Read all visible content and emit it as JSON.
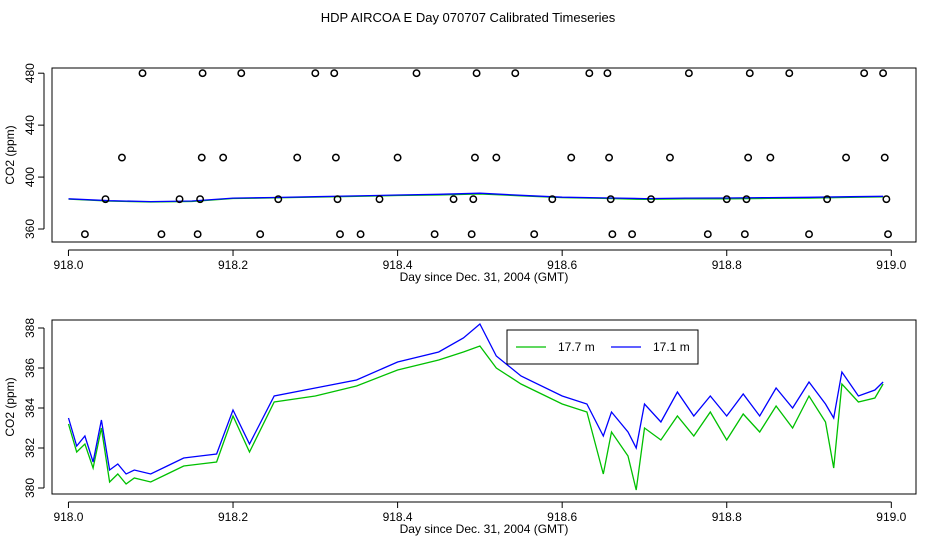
{
  "title": "HDP AIRCOA E  Day 070707  Calibrated Timeseries",
  "colors": {
    "green": "#00c000",
    "blue": "#0000ff",
    "axis": "#000000",
    "marker": "#000000"
  },
  "chart_data": [
    {
      "type": "scatter+line",
      "xlabel": "Day since Dec. 31, 2004 (GMT)",
      "ylabel": "CO2 (ppm)",
      "xlim": [
        917.98,
        919.03
      ],
      "ylim": [
        350,
        484
      ],
      "xticks": [
        918.0,
        918.2,
        918.4,
        918.6,
        918.8,
        919.0
      ],
      "xtick_labels": [
        "918.0",
        "918.2",
        "918.4",
        "918.6",
        "918.8",
        "919.0"
      ],
      "yticks": [
        360,
        400,
        440,
        480
      ],
      "ytick_labels": [
        "360",
        "400",
        "440",
        "480"
      ],
      "points": [
        [
          918.02,
          356
        ],
        [
          918.045,
          383
        ],
        [
          918.065,
          415
        ],
        [
          918.09,
          480
        ],
        [
          918.113,
          356
        ],
        [
          918.135,
          383
        ],
        [
          918.157,
          356
        ],
        [
          918.16,
          383
        ],
        [
          918.162,
          415
        ],
        [
          918.163,
          480
        ],
        [
          918.188,
          415
        ],
        [
          918.21,
          480
        ],
        [
          918.233,
          356
        ],
        [
          918.255,
          383
        ],
        [
          918.278,
          415
        ],
        [
          918.3,
          480
        ],
        [
          918.323,
          480
        ],
        [
          918.325,
          415
        ],
        [
          918.327,
          383
        ],
        [
          918.33,
          356
        ],
        [
          918.355,
          356
        ],
        [
          918.378,
          383
        ],
        [
          918.4,
          415
        ],
        [
          918.423,
          480
        ],
        [
          918.445,
          356
        ],
        [
          918.468,
          383
        ],
        [
          918.49,
          356
        ],
        [
          918.492,
          383
        ],
        [
          918.494,
          415
        ],
        [
          918.496,
          480
        ],
        [
          918.52,
          415
        ],
        [
          918.543,
          480
        ],
        [
          918.566,
          356
        ],
        [
          918.588,
          383
        ],
        [
          918.611,
          415
        ],
        [
          918.633,
          480
        ],
        [
          918.655,
          480
        ],
        [
          918.657,
          415
        ],
        [
          918.659,
          383
        ],
        [
          918.661,
          356
        ],
        [
          918.685,
          356
        ],
        [
          918.708,
          383
        ],
        [
          918.731,
          415
        ],
        [
          918.754,
          480
        ],
        [
          918.777,
          356
        ],
        [
          918.8,
          383
        ],
        [
          918.822,
          356
        ],
        [
          918.824,
          383
        ],
        [
          918.826,
          415
        ],
        [
          918.828,
          480
        ],
        [
          918.853,
          415
        ],
        [
          918.876,
          480
        ],
        [
          918.9,
          356
        ],
        [
          918.922,
          383
        ],
        [
          918.945,
          415
        ],
        [
          918.967,
          480
        ],
        [
          918.99,
          480
        ],
        [
          918.992,
          415
        ],
        [
          918.994,
          383
        ],
        [
          918.996,
          356
        ]
      ],
      "series": [
        {
          "color": "#00c000",
          "x": [
            918.0,
            918.05,
            918.1,
            918.15,
            918.2,
            918.25,
            918.3,
            918.35,
            918.4,
            918.45,
            918.5,
            918.55,
            918.6,
            918.65,
            918.7,
            918.75,
            918.8,
            918.85,
            918.9,
            918.95,
            918.99
          ],
          "y": [
            383.0,
            381.5,
            380.8,
            381.2,
            383.5,
            384.0,
            384.6,
            385.2,
            385.8,
            386.2,
            387.0,
            385.6,
            384.2,
            383.6,
            382.8,
            383.3,
            383.2,
            383.6,
            383.8,
            384.4,
            384.8
          ]
        },
        {
          "color": "#0000ff",
          "x": [
            918.0,
            918.05,
            918.1,
            918.15,
            918.2,
            918.25,
            918.3,
            918.35,
            918.4,
            918.45,
            918.5,
            918.55,
            918.6,
            918.65,
            918.7,
            918.75,
            918.8,
            918.85,
            918.9,
            918.95,
            918.99
          ],
          "y": [
            383.3,
            381.8,
            381.1,
            381.6,
            383.8,
            384.3,
            384.9,
            385.5,
            386.2,
            386.7,
            387.6,
            386.0,
            384.5,
            384.0,
            383.4,
            383.8,
            383.9,
            384.2,
            384.4,
            384.9,
            385.2
          ]
        }
      ]
    },
    {
      "type": "line",
      "xlabel": "Day since Dec. 31, 2004 (GMT)",
      "ylabel": "CO2 (ppm)",
      "xlim": [
        917.98,
        919.03
      ],
      "ylim": [
        379.7,
        388.4
      ],
      "xticks": [
        918.0,
        918.2,
        918.4,
        918.6,
        918.8,
        919.0
      ],
      "xtick_labels": [
        "918.0",
        "918.2",
        "918.4",
        "918.6",
        "918.8",
        "919.0"
      ],
      "yticks": [
        380,
        382,
        384,
        386,
        388
      ],
      "ytick_labels": [
        "380",
        "382",
        "384",
        "386",
        "388"
      ],
      "legend": {
        "position": "top-right"
      },
      "series": [
        {
          "name": "17.7 m",
          "color": "#00c000",
          "x": [
            918.0,
            918.01,
            918.02,
            918.03,
            918.04,
            918.05,
            918.06,
            918.07,
            918.08,
            918.1,
            918.12,
            918.14,
            918.16,
            918.18,
            918.2,
            918.22,
            918.25,
            918.3,
            918.35,
            918.4,
            918.45,
            918.48,
            918.5,
            918.52,
            918.55,
            918.6,
            918.63,
            918.65,
            918.66,
            918.68,
            918.69,
            918.7,
            918.72,
            918.74,
            918.76,
            918.78,
            918.8,
            918.82,
            918.84,
            918.86,
            918.88,
            918.9,
            918.92,
            918.93,
            918.94,
            918.96,
            918.98,
            918.99
          ],
          "y": [
            383.2,
            381.8,
            382.2,
            381.0,
            383.0,
            380.3,
            380.7,
            380.2,
            380.5,
            380.3,
            380.7,
            381.1,
            381.2,
            381.3,
            383.6,
            381.8,
            384.3,
            384.6,
            385.1,
            385.9,
            386.4,
            386.8,
            387.1,
            386.0,
            385.2,
            384.2,
            383.8,
            380.7,
            382.8,
            381.6,
            379.9,
            383.0,
            382.4,
            383.6,
            382.6,
            383.8,
            382.4,
            383.7,
            382.8,
            384.1,
            383.0,
            384.6,
            383.3,
            381.0,
            385.2,
            384.3,
            384.5,
            385.2
          ]
        },
        {
          "name": "17.1 m",
          "color": "#0000ff",
          "x": [
            918.0,
            918.01,
            918.02,
            918.03,
            918.04,
            918.05,
            918.06,
            918.07,
            918.08,
            918.1,
            918.12,
            918.14,
            918.16,
            918.18,
            918.2,
            918.22,
            918.25,
            918.3,
            918.35,
            918.4,
            918.45,
            918.48,
            918.5,
            918.52,
            918.55,
            918.6,
            918.63,
            918.65,
            918.66,
            918.68,
            918.69,
            918.7,
            918.72,
            918.74,
            918.76,
            918.78,
            918.8,
            918.82,
            918.84,
            918.86,
            918.88,
            918.9,
            918.92,
            918.93,
            918.94,
            918.96,
            918.98,
            918.99
          ],
          "y": [
            383.5,
            382.1,
            382.6,
            381.3,
            383.4,
            380.9,
            381.2,
            380.7,
            380.9,
            380.7,
            381.1,
            381.5,
            381.6,
            381.7,
            383.9,
            382.2,
            384.6,
            385.0,
            385.4,
            386.3,
            386.8,
            387.5,
            388.2,
            386.6,
            385.6,
            384.6,
            384.2,
            382.6,
            383.8,
            382.8,
            382.0,
            384.2,
            383.3,
            384.8,
            383.6,
            384.6,
            383.6,
            384.7,
            383.6,
            385.0,
            384.0,
            385.3,
            384.2,
            383.5,
            385.8,
            384.6,
            384.9,
            385.3
          ]
        }
      ]
    }
  ]
}
